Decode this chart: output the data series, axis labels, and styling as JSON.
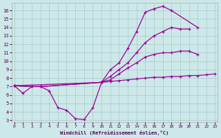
{
  "xlabel": "Windchill (Refroidissement éolien,°C)",
  "background_color": "#cde8e8",
  "grid_color": "#a8c8c8",
  "line_color": "#990099",
  "xlim": [
    -0.3,
    23.3
  ],
  "ylim": [
    2.8,
    16.9
  ],
  "yticks": [
    3,
    4,
    5,
    6,
    7,
    8,
    9,
    10,
    11,
    12,
    13,
    14,
    15,
    16
  ],
  "xticks": [
    0,
    1,
    2,
    3,
    4,
    5,
    6,
    7,
    8,
    9,
    10,
    11,
    12,
    13,
    14,
    15,
    16,
    17,
    18,
    19,
    20,
    21,
    22,
    23
  ],
  "series": [
    {
      "x": [
        0,
        1,
        2,
        3,
        4,
        5,
        6,
        7,
        8,
        9,
        10,
        11,
        12,
        13,
        14,
        15,
        16,
        17,
        18,
        21
      ],
      "y": [
        7.1,
        6.2,
        7.0,
        7.0,
        6.5,
        4.5,
        4.2,
        3.2,
        3.1,
        4.5,
        7.5,
        9.0,
        9.8,
        11.5,
        13.5,
        15.8,
        16.2,
        16.5,
        16.0,
        14.0
      ]
    },
    {
      "x": [
        0,
        2,
        3,
        10,
        11,
        12,
        13,
        14,
        15,
        16,
        17,
        18,
        19,
        20
      ],
      "y": [
        7.1,
        7.0,
        7.0,
        7.5,
        8.2,
        9.0,
        9.8,
        11.0,
        12.2,
        13.0,
        13.5,
        14.0,
        13.8,
        13.8
      ]
    },
    {
      "x": [
        0,
        2,
        3,
        10,
        11,
        12,
        13,
        14,
        15,
        16,
        17,
        18,
        19,
        20,
        21
      ],
      "y": [
        7.1,
        7.0,
        7.0,
        7.5,
        7.8,
        8.5,
        9.2,
        9.8,
        10.5,
        10.8,
        11.0,
        11.0,
        11.2,
        11.2,
        10.8
      ]
    },
    {
      "x": [
        0,
        10,
        11,
        12,
        13,
        14,
        15,
        16,
        17,
        18,
        19,
        20,
        21,
        22,
        23
      ],
      "y": [
        7.1,
        7.5,
        7.6,
        7.7,
        7.8,
        7.9,
        8.0,
        8.1,
        8.1,
        8.2,
        8.2,
        8.3,
        8.3,
        8.4,
        8.5
      ]
    }
  ]
}
